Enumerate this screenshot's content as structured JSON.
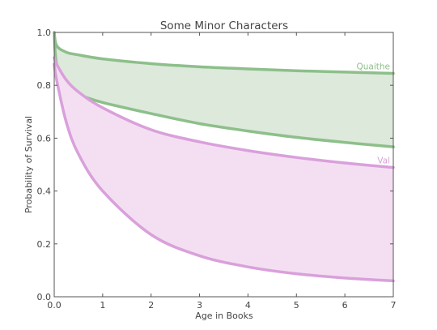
{
  "chart_data": {
    "type": "area",
    "title": "Some Minor Characters",
    "xlabel": "Age in Books",
    "ylabel": "Probability of Survival",
    "xlim": [
      0,
      7
    ],
    "ylim": [
      0,
      1
    ],
    "xticks": [
      "0.0",
      "1",
      "2",
      "3",
      "4",
      "5",
      "6",
      "7"
    ],
    "yticks": [
      "0.0",
      "0.2",
      "0.4",
      "0.6",
      "0.8",
      "1.0"
    ],
    "x": [
      0,
      0.05,
      0.25,
      0.5,
      1,
      2,
      3,
      4,
      5,
      6,
      7
    ],
    "grid": false,
    "legend": "none",
    "series": [
      {
        "name": "Quaithe",
        "color": "#8dbf8a",
        "fill": "#dce9db",
        "upper": [
          1.0,
          0.95,
          0.925,
          0.915,
          0.9,
          0.882,
          0.87,
          0.862,
          0.855,
          0.85,
          0.845
        ],
        "lower": [
          1.0,
          0.88,
          0.79,
          0.765,
          0.735,
          0.693,
          0.655,
          0.627,
          0.603,
          0.584,
          0.567
        ]
      },
      {
        "name": "Val",
        "color": "#d9a0db",
        "fill": "#f4dff2",
        "upper": [
          0.905,
          0.88,
          0.82,
          0.775,
          0.715,
          0.632,
          0.586,
          0.553,
          0.527,
          0.506,
          0.489
        ],
        "lower": [
          0.88,
          0.82,
          0.66,
          0.54,
          0.4,
          0.235,
          0.155,
          0.113,
          0.087,
          0.071,
          0.06
        ]
      }
    ]
  }
}
